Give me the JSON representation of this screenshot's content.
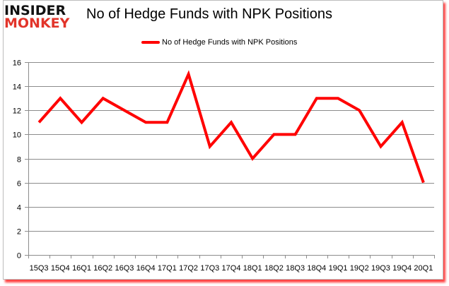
{
  "logo": {
    "line1": "INSIDER",
    "line2": "MONKEY"
  },
  "title": "No of Hedge Funds with NPK Positions",
  "legend": {
    "label": "No of Hedge Funds with NPK Positions",
    "color": "#ff0000"
  },
  "chart_data": {
    "type": "line",
    "title": "No of Hedge Funds with NPK Positions",
    "xlabel": "",
    "ylabel": "",
    "categories": [
      "15Q3",
      "15Q4",
      "16Q1",
      "16Q2",
      "16Q3",
      "16Q4",
      "17Q1",
      "17Q2",
      "17Q3",
      "17Q4",
      "18Q1",
      "18Q2",
      "18Q3",
      "18Q4",
      "19Q1",
      "19Q2",
      "19Q3",
      "19Q4",
      "20Q1"
    ],
    "series": [
      {
        "name": "No of Hedge Funds with NPK Positions",
        "color": "#ff0000",
        "values": [
          11,
          13,
          11,
          13,
          12,
          11,
          11,
          15,
          9,
          11,
          8,
          10,
          10,
          13,
          13,
          12,
          9,
          11,
          6
        ]
      }
    ],
    "ylim": [
      0,
      16
    ],
    "yticks": [
      0,
      2,
      4,
      6,
      8,
      10,
      12,
      14,
      16
    ],
    "grid": true,
    "legend_position": "top"
  }
}
